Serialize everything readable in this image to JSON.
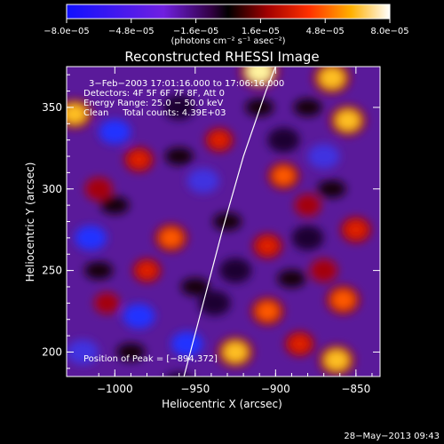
{
  "chart_data": {
    "type": "heatmap",
    "title": "Reconstructed RHESSI Image",
    "xlabel": "Heliocentric X (arcsec)",
    "ylabel": "Heliocentric Y (arcsec)",
    "xlim": [
      -1030,
      -835
    ],
    "ylim": [
      185,
      375
    ],
    "x_ticks": [
      -1000,
      -950,
      -900,
      -850
    ],
    "x_tick_labels": [
      "−1000",
      "−950",
      "−900",
      "−850"
    ],
    "y_ticks": [
      200,
      250,
      300,
      350
    ],
    "y_tick_labels": [
      "200",
      "250",
      "300",
      "350"
    ],
    "colorbar": {
      "min": -8e-05,
      "max": 8e-05,
      "tick_labels": [
        "−8.0e−05",
        "−4.8e−05",
        "−1.6e−05",
        "1.6e−05",
        "4.8e−05",
        "8.0e−05"
      ],
      "unit_label": "(photons cm⁻² s⁻¹ asec⁻²)"
    },
    "info_lines": [
      "3−Feb−2003 17:01:16.000 to 17:06:16.000",
      "Detectors: 4F 5F 6F 7F 8F, Att 0",
      "Energy Range: 25.0 − 50.0 keV",
      "Clean     Total counts: 4.39E+03"
    ],
    "peak_label": "Position of Peak = [−894,372]",
    "limb_curve": [
      [
        -957,
        185
      ],
      [
        -945,
        230
      ],
      [
        -933,
        275
      ],
      [
        -920,
        320
      ],
      [
        -906,
        360
      ],
      [
        -900,
        375
      ]
    ],
    "hot_spots": [
      {
        "x": -910,
        "y": 372,
        "v": 1.0
      },
      {
        "x": -865,
        "y": 368,
        "v": 0.9
      },
      {
        "x": -855,
        "y": 342,
        "v": 0.85
      },
      {
        "x": -1025,
        "y": 346,
        "v": 0.8
      },
      {
        "x": -985,
        "y": 318,
        "v": 0.55
      },
      {
        "x": -1010,
        "y": 300,
        "v": 0.45
      },
      {
        "x": -965,
        "y": 270,
        "v": 0.7
      },
      {
        "x": -980,
        "y": 250,
        "v": 0.5
      },
      {
        "x": -895,
        "y": 308,
        "v": 0.65
      },
      {
        "x": -905,
        "y": 265,
        "v": 0.55
      },
      {
        "x": -880,
        "y": 290,
        "v": 0.4
      },
      {
        "x": -870,
        "y": 250,
        "v": 0.45
      },
      {
        "x": -858,
        "y": 232,
        "v": 0.75
      },
      {
        "x": -905,
        "y": 225,
        "v": 0.7
      },
      {
        "x": -925,
        "y": 200,
        "v": 0.85
      },
      {
        "x": -862,
        "y": 195,
        "v": 0.85
      },
      {
        "x": -885,
        "y": 205,
        "v": 0.55
      },
      {
        "x": -1005,
        "y": 230,
        "v": 0.35
      },
      {
        "x": -935,
        "y": 330,
        "v": 0.5
      },
      {
        "x": -850,
        "y": 275,
        "v": 0.6
      }
    ],
    "cold_spots": [
      {
        "x": -1000,
        "y": 335,
        "v": -0.8
      },
      {
        "x": -960,
        "y": 350,
        "v": -0.6
      },
      {
        "x": -945,
        "y": 305,
        "v": -0.7
      },
      {
        "x": -1015,
        "y": 270,
        "v": -0.75
      },
      {
        "x": -985,
        "y": 222,
        "v": -0.8
      },
      {
        "x": -955,
        "y": 205,
        "v": -0.75
      },
      {
        "x": -925,
        "y": 250,
        "v": -0.6
      },
      {
        "x": -895,
        "y": 330,
        "v": -0.55
      },
      {
        "x": -870,
        "y": 320,
        "v": -0.7
      },
      {
        "x": -880,
        "y": 270,
        "v": -0.6
      },
      {
        "x": -938,
        "y": 230,
        "v": -0.5
      },
      {
        "x": -1020,
        "y": 200,
        "v": -0.7
      },
      {
        "x": -960,
        "y": 180,
        "v": -0.5
      }
    ]
  },
  "footer": {
    "timestamp": "28−May−2013 09:43"
  }
}
